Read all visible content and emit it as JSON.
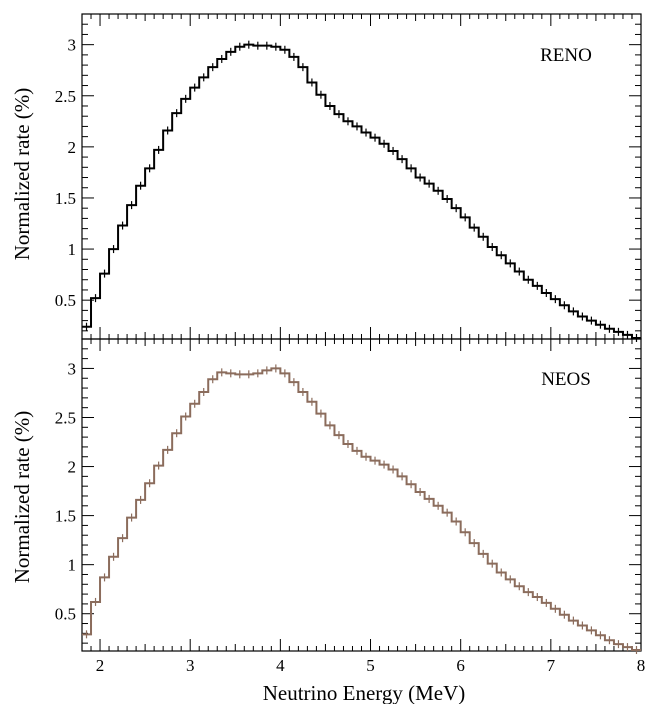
{
  "chart_data": [
    {
      "type": "line",
      "panel_label": "RENO",
      "xlabel": "",
      "ylabel": "Normalized rate (%)",
      "xlim": [
        1.8,
        8.0
      ],
      "ylim": [
        0.12,
        3.3
      ],
      "yticks_major": [
        0.5,
        1,
        1.5,
        2,
        2.5,
        3
      ],
      "ytick_labels": [
        "0.5",
        "1",
        "1.5",
        "2",
        "2.5",
        "3"
      ],
      "color": "#000000",
      "bin_width": 0.1,
      "x": [
        1.85,
        1.95,
        2.05,
        2.15,
        2.25,
        2.35,
        2.45,
        2.55,
        2.65,
        2.75,
        2.85,
        2.95,
        3.05,
        3.15,
        3.25,
        3.35,
        3.45,
        3.55,
        3.65,
        3.75,
        3.85,
        3.95,
        4.05,
        4.15,
        4.25,
        4.35,
        4.45,
        4.55,
        4.65,
        4.75,
        4.85,
        4.95,
        5.05,
        5.15,
        5.25,
        5.35,
        5.45,
        5.55,
        5.65,
        5.75,
        5.85,
        5.95,
        6.05,
        6.15,
        6.25,
        6.35,
        6.45,
        6.55,
        6.65,
        6.75,
        6.85,
        6.95,
        7.05,
        7.15,
        7.25,
        7.35,
        7.45,
        7.55,
        7.65,
        7.75,
        7.85,
        7.95
      ],
      "values": [
        0.24,
        0.52,
        0.76,
        1.0,
        1.23,
        1.43,
        1.62,
        1.79,
        1.97,
        2.16,
        2.33,
        2.47,
        2.58,
        2.68,
        2.78,
        2.86,
        2.93,
        2.98,
        3.0,
        2.99,
        2.99,
        2.98,
        2.95,
        2.88,
        2.78,
        2.63,
        2.51,
        2.4,
        2.32,
        2.25,
        2.2,
        2.14,
        2.09,
        2.03,
        1.96,
        1.88,
        1.79,
        1.7,
        1.64,
        1.57,
        1.49,
        1.4,
        1.31,
        1.21,
        1.12,
        1.02,
        0.94,
        0.86,
        0.78,
        0.7,
        0.64,
        0.57,
        0.51,
        0.45,
        0.39,
        0.34,
        0.3,
        0.26,
        0.22,
        0.19,
        0.16,
        0.13
      ]
    },
    {
      "type": "line",
      "panel_label": "NEOS",
      "xlabel": "Neutrino Energy (MeV)",
      "ylabel": "Normalized rate (%)",
      "xlim": [
        1.8,
        8.0
      ],
      "ylim": [
        0.12,
        3.3
      ],
      "xticks_major": [
        2,
        3,
        4,
        5,
        6,
        7,
        8
      ],
      "xtick_labels": [
        "2",
        "3",
        "4",
        "5",
        "6",
        "7",
        "8"
      ],
      "yticks_major": [
        0.5,
        1,
        1.5,
        2,
        2.5,
        3
      ],
      "ytick_labels": [
        "0.5",
        "1",
        "1.5",
        "2",
        "2.5",
        "3"
      ],
      "color": "#8b6c5c",
      "bin_width": 0.1,
      "x": [
        1.85,
        1.95,
        2.05,
        2.15,
        2.25,
        2.35,
        2.45,
        2.55,
        2.65,
        2.75,
        2.85,
        2.95,
        3.05,
        3.15,
        3.25,
        3.35,
        3.45,
        3.55,
        3.65,
        3.75,
        3.85,
        3.95,
        4.05,
        4.15,
        4.25,
        4.35,
        4.45,
        4.55,
        4.65,
        4.75,
        4.85,
        4.95,
        5.05,
        5.15,
        5.25,
        5.35,
        5.45,
        5.55,
        5.65,
        5.75,
        5.85,
        5.95,
        6.05,
        6.15,
        6.25,
        6.35,
        6.45,
        6.55,
        6.65,
        6.75,
        6.85,
        6.95,
        7.05,
        7.15,
        7.25,
        7.35,
        7.45,
        7.55,
        7.65,
        7.75,
        7.85,
        7.95
      ],
      "values": [
        0.29,
        0.62,
        0.87,
        1.08,
        1.27,
        1.48,
        1.66,
        1.83,
        2.01,
        2.17,
        2.34,
        2.51,
        2.64,
        2.76,
        2.89,
        2.96,
        2.95,
        2.94,
        2.94,
        2.95,
        2.98,
        3.0,
        2.95,
        2.86,
        2.76,
        2.66,
        2.54,
        2.42,
        2.32,
        2.23,
        2.16,
        2.1,
        2.06,
        2.02,
        1.97,
        1.9,
        1.82,
        1.74,
        1.67,
        1.6,
        1.53,
        1.44,
        1.33,
        1.22,
        1.11,
        1.01,
        0.92,
        0.85,
        0.78,
        0.72,
        0.67,
        0.61,
        0.55,
        0.49,
        0.43,
        0.38,
        0.33,
        0.28,
        0.23,
        0.19,
        0.16,
        0.13
      ]
    }
  ]
}
